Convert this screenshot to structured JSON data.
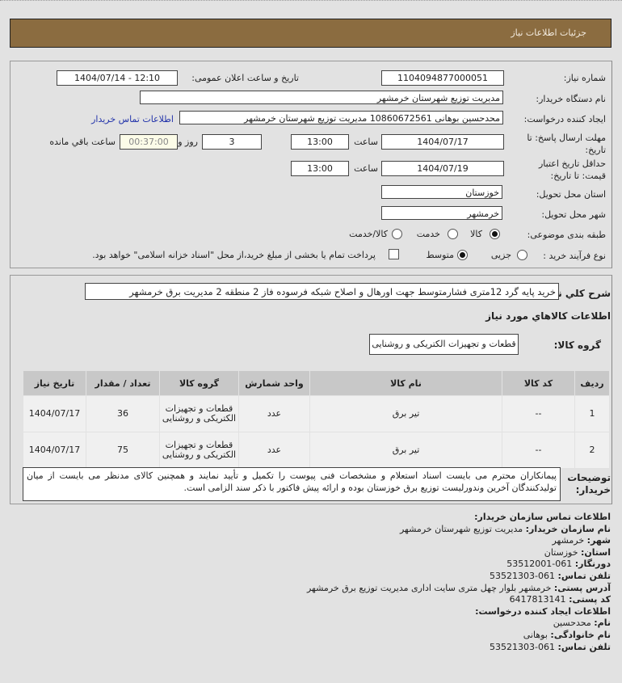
{
  "header": {
    "title": "جزئیات اطلاعات نیاز"
  },
  "form": {
    "need_number_label": "شماره نیاز:",
    "need_number": "1104094877000051",
    "announce_label": "تاریخ و ساعت اعلان عمومی:",
    "announce_value": "1404/07/14 - 12:10",
    "buyer_label": "نام دستگاه خریدار:",
    "buyer_value": "مدیریت توزیع شهرستان خرمشهر",
    "creator_label": "ایجاد کننده درخواست:",
    "creator_value": "محدحسین بوهانی 10860672561 مدیریت توزیع شهرستان خرمشهر",
    "contact_link": "اطلاعات تماس خریدار",
    "deadline_label": "مهلت ارسال پاسخ: تا تاریخ:",
    "deadline_date": "1404/07/17",
    "time_label": "ساعت",
    "deadline_time": "13:00",
    "days": "3",
    "days_label": "روز و",
    "remaining": "00:37:00",
    "remaining_label": "ساعت باقي مانده",
    "validity_label": "حداقل تاریخ اعتبار قیمت: تا تاریخ:",
    "validity_date": "1404/07/19",
    "validity_time": "13:00",
    "province_label": "استان محل تحویل:",
    "province": "خوزستان",
    "city_label": "شهر محل تحویل:",
    "city": "خرمشهر",
    "category_label": "طبقه بندی موضوعی:",
    "category_options": [
      "کالا",
      "خدمت",
      "کالا/خدمت"
    ],
    "category_selected": "کالا",
    "process_label": "نوع فرآیند خرید :",
    "process_options": [
      "جزیی",
      "متوسط"
    ],
    "process_selected": "متوسط",
    "payment_text": "پرداخت تمام یا بخشی از مبلغ خرید،از محل \"اسناد خزانه اسلامی\" خواهد بود.",
    "payment_checked": false
  },
  "summary": {
    "label": "شرح کلي نیاز:",
    "value": "خرید پایه گرد 12متری فشارمتوسط جهت اورهال و اصلاح شبکه فرسوده فاز 2 منطقه 2 مدیریت برق خرمشهر"
  },
  "goods": {
    "title": "اطلاعات کالاهاي مورد نیاز",
    "group_label": "گروه کالا:",
    "group_value": "قطعات و تجهیزات الکتریکی و روشنایی",
    "columns": [
      "ردیف",
      "کد کالا",
      "نام کالا",
      "واحد شمارش",
      "گروه کالا",
      "تعداد / مقدار",
      "تاریخ نیاز"
    ],
    "rows": [
      [
        "1",
        "--",
        "تیر برق",
        "عدد",
        "قطعات و تجهیزات الکتریکی و روشنایی",
        "36",
        "1404/07/17"
      ],
      [
        "2",
        "--",
        "تیر برق",
        "عدد",
        "قطعات و تجهیزات الکتریکی و روشنایی",
        "75",
        "1404/07/17"
      ]
    ]
  },
  "notes": {
    "label": "توضیحات خریدار:",
    "value": "پیمانکاران محترم می بایست اسناد استعلام و مشخصات فنی پیوست را تکمیل و تأیید نمایند و همچنین کالای مدنظر می بایست از میان تولیدکنندگان آخرین وندورلیست توزیع برق خوزستان بوده و ارائه پیش فاکتور با ذکر سند الزامی است."
  },
  "contact": {
    "title": "اطلاعات تماس سازمان خریدار:",
    "lines": [
      [
        "نام سازمان خریدار:",
        "مدیریت توزیع شهرستان خرمشهر"
      ],
      [
        "شهر:",
        "خرمشهر"
      ],
      [
        "استان:",
        "خوزستان"
      ],
      [
        "دورنگار:",
        "061-53512001"
      ],
      [
        "تلفن تماس:",
        "061-53521303"
      ],
      [
        "آدرس پستی:",
        "خرمشهر بلوار چهل متری سایت اداری مدیریت توزیع برق خرمشهر"
      ],
      [
        "کد پستی:",
        "6417813141"
      ]
    ],
    "creator_title": "اطلاعات ایجاد کننده درخواست:",
    "creator_lines": [
      [
        "نام:",
        "محدحسین"
      ],
      [
        "نام خانوادگی:",
        "بوهانی"
      ],
      [
        "تلفن تماس:",
        "061-53521303"
      ]
    ]
  },
  "colors": {
    "header": "#8b6c40",
    "background": "#e2e2e2",
    "link": "#2233aa"
  }
}
